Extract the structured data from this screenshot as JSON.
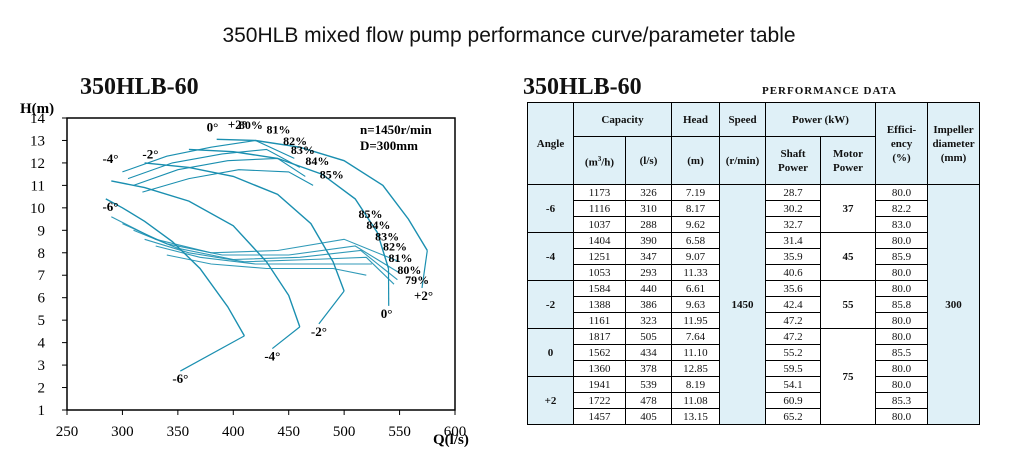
{
  "page": {
    "title": "350HLB mixed flow pump performance curve/parameter table"
  },
  "chart_data": {
    "type": "line",
    "model": "350HLB-60",
    "xlabel": "Q(l/s)",
    "ylabel": "H(m)",
    "xlim": [
      250,
      600
    ],
    "ylim": [
      1,
      14
    ],
    "xticks": [
      250,
      300,
      350,
      400,
      450,
      500,
      550,
      600
    ],
    "yticks": [
      1,
      2,
      3,
      4,
      5,
      6,
      7,
      8,
      9,
      10,
      11,
      12,
      13,
      14
    ],
    "annotation": [
      "n=1450r/min",
      "D=300mm"
    ],
    "series": [
      {
        "name": "-6°",
        "points": [
          [
            285,
            10.4
          ],
          [
            300,
            10.0
          ],
          [
            320,
            9.4
          ],
          [
            345,
            8.5
          ],
          [
            370,
            7.3
          ],
          [
            395,
            5.6
          ],
          [
            410,
            4.3
          ]
        ],
        "label_pos": [
          [
            282,
            9.85
          ],
          [
            345,
            2.2
          ]
        ]
      },
      {
        "name": "-4°",
        "points": [
          [
            290,
            11.2
          ],
          [
            320,
            10.9
          ],
          [
            360,
            10.3
          ],
          [
            400,
            9.2
          ],
          [
            430,
            7.6
          ],
          [
            450,
            6.1
          ],
          [
            460,
            4.7
          ]
        ],
        "label_pos": [
          [
            282,
            12.0
          ],
          [
            428,
            3.2
          ]
        ]
      },
      {
        "name": "-2°",
        "points": [
          [
            320,
            12.0
          ],
          [
            360,
            11.8
          ],
          [
            400,
            11.4
          ],
          [
            440,
            10.6
          ],
          [
            470,
            9.3
          ],
          [
            490,
            7.6
          ],
          [
            500,
            6.3
          ]
        ],
        "label_pos": [
          [
            318,
            12.2
          ],
          [
            470,
            4.3
          ]
        ]
      },
      {
        "name": "0°",
        "points": [
          [
            360,
            12.6
          ],
          [
            400,
            12.5
          ],
          [
            440,
            12.2
          ],
          [
            480,
            11.5
          ],
          [
            510,
            10.4
          ],
          [
            530,
            8.9
          ],
          [
            540,
            7.3
          ]
        ],
        "label_pos": [
          [
            376,
            13.4
          ],
          [
            533,
            5.1
          ]
        ]
      },
      {
        "name": "+2°",
        "points": [
          [
            385,
            13.05
          ],
          [
            420,
            13.0
          ],
          [
            460,
            12.7
          ],
          [
            500,
            12.1
          ],
          [
            535,
            11.0
          ],
          [
            558,
            9.5
          ],
          [
            575,
            8.1
          ]
        ],
        "label_pos": [
          [
            395,
            13.5
          ],
          [
            563,
            5.9
          ]
        ]
      }
    ],
    "efficiency_labels": [
      "80%",
      "81%",
      "82%",
      "83%",
      "84%",
      "85%",
      "85%",
      "84%",
      "83%",
      "82%",
      "81%",
      "80%",
      "79%"
    ],
    "efficiency_points": [
      [
        405,
        13.5
      ],
      [
        430,
        13.3
      ],
      [
        445,
        12.8
      ],
      [
        452,
        12.4
      ],
      [
        465,
        11.9
      ],
      [
        478,
        11.3
      ],
      [
        513,
        9.55
      ],
      [
        520,
        9.05
      ],
      [
        528,
        8.55
      ],
      [
        535,
        8.1
      ],
      [
        540,
        7.6
      ],
      [
        548,
        7.05
      ],
      [
        555,
        6.6
      ]
    ]
  },
  "table": {
    "model": "350HLB-60",
    "caption": "PERFORMANCE DATA",
    "headers": {
      "angle": "Angle",
      "capacity": "Capacity",
      "cap_m3h_pre": "(m",
      "cap_m3h_sup": "3",
      "cap_m3h_post": "/h)",
      "cap_ls": "(l/s)",
      "head": "Head",
      "head_unit": "(m)",
      "speed": "Speed",
      "speed_unit": "(r/min)",
      "power": "Power (kW)",
      "shaft": "Shaft Power",
      "motor": "Motor Power",
      "eff1": "Effici-",
      "eff2": "ency",
      "eff3": "(%)",
      "imp": "Impeller diameter (mm)"
    },
    "speed": "1450",
    "impeller": "300",
    "groups": [
      {
        "angle": "-6",
        "motor": "37",
        "rows": [
          [
            "1173",
            "326",
            "7.19",
            "28.7",
            "80.0"
          ],
          [
            "1116",
            "310",
            "8.17",
            "30.2",
            "82.2"
          ],
          [
            "1037",
            "288",
            "9.62",
            "32.7",
            "83.0"
          ]
        ]
      },
      {
        "angle": "-4",
        "motor": "45",
        "rows": [
          [
            "1404",
            "390",
            "6.58",
            "31.4",
            "80.0"
          ],
          [
            "1251",
            "347",
            "9.07",
            "35.9",
            "85.9"
          ],
          [
            "1053",
            "293",
            "11.33",
            "40.6",
            "80.0"
          ]
        ]
      },
      {
        "angle": "-2",
        "motor": "55",
        "rows": [
          [
            "1584",
            "440",
            "6.61",
            "35.6",
            "80.0"
          ],
          [
            "1388",
            "386",
            "9.63",
            "42.4",
            "85.8"
          ],
          [
            "1161",
            "323",
            "11.95",
            "47.2",
            "80.0"
          ]
        ]
      },
      {
        "angle": "0",
        "motor": "",
        "rows": [
          [
            "1817",
            "505",
            "7.64",
            "47.2",
            "80.0"
          ],
          [
            "1562",
            "434",
            "11.10",
            "55.2",
            "85.5"
          ],
          [
            "1360",
            "378",
            "12.85",
            "59.5",
            "80.0"
          ]
        ]
      },
      {
        "angle": "+2",
        "motor": "",
        "rows": [
          [
            "1941",
            "539",
            "8.19",
            "54.1",
            "80.0"
          ],
          [
            "1722",
            "478",
            "11.08",
            "60.9",
            "85.3"
          ],
          [
            "1457",
            "405",
            "13.15",
            "65.2",
            "80.0"
          ]
        ]
      }
    ],
    "motor_shared": "75"
  }
}
